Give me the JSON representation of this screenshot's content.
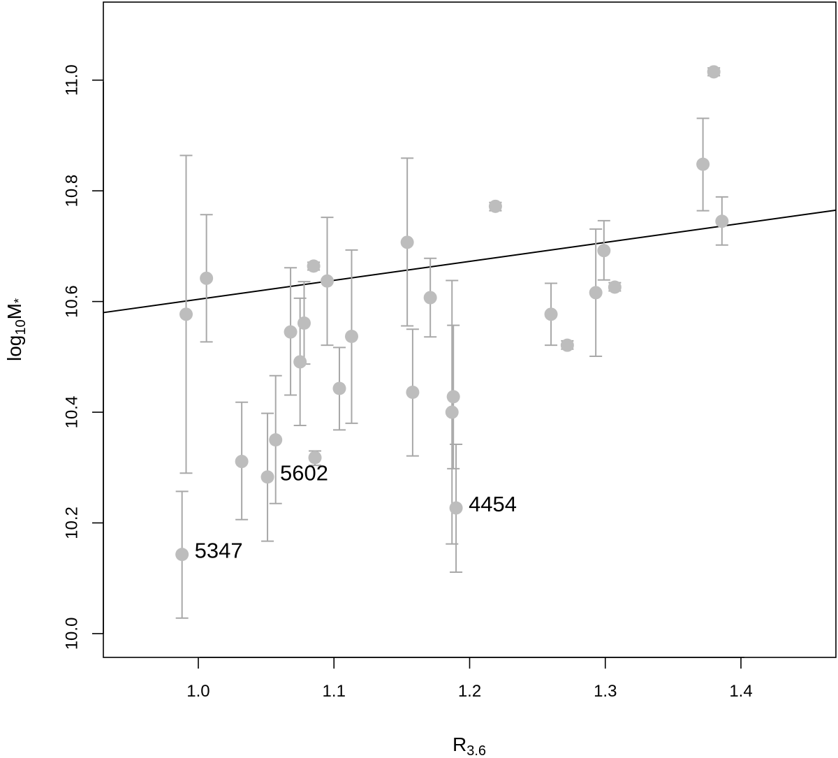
{
  "chart_data": {
    "type": "scatter",
    "xlabel": {
      "main": "R",
      "sub": "3.6"
    },
    "ylabel": {
      "main": "log",
      "sub": "10",
      "rest": "M",
      "sup": "*"
    },
    "xlim": [
      0.93,
      1.47
    ],
    "ylim": [
      9.957,
      11.141
    ],
    "xticks": [
      1.0,
      1.1,
      1.2,
      1.3,
      1.4
    ],
    "xtick_labels": [
      "1.0",
      "1.1",
      "1.2",
      "1.3",
      "1.4"
    ],
    "yticks": [
      10.0,
      10.2,
      10.4,
      10.6,
      10.8,
      11.0
    ],
    "ytick_labels": [
      "10.0",
      "10.2",
      "10.4",
      "10.6",
      "10.8",
      "11.0"
    ],
    "grid": false,
    "point_color": "#bdbdbd",
    "errorbar_color": "#a8a8a8",
    "line_color": "#000000",
    "fit_line": {
      "x": [
        0.93,
        1.47
      ],
      "y": [
        10.58,
        10.765
      ]
    },
    "points": [
      {
        "x": 0.988,
        "y": 10.143,
        "lo": 10.028,
        "hi": 10.257
      },
      {
        "x": 0.991,
        "y": 10.577,
        "lo": 10.29,
        "hi": 10.864
      },
      {
        "x": 1.006,
        "y": 10.642,
        "lo": 10.527,
        "hi": 10.757
      },
      {
        "x": 1.032,
        "y": 10.311,
        "lo": 10.206,
        "hi": 10.418
      },
      {
        "x": 1.051,
        "y": 10.283,
        "lo": 10.167,
        "hi": 10.398
      },
      {
        "x": 1.057,
        "y": 10.35,
        "lo": 10.235,
        "hi": 10.466
      },
      {
        "x": 1.068,
        "y": 10.545,
        "lo": 10.431,
        "hi": 10.661
      },
      {
        "x": 1.075,
        "y": 10.491,
        "lo": 10.376,
        "hi": 10.606
      },
      {
        "x": 1.078,
        "y": 10.561,
        "lo": 10.487,
        "hi": 10.636
      },
      {
        "x": 1.085,
        "y": 10.664,
        "lo": 10.657,
        "hi": 10.671
      },
      {
        "x": 1.086,
        "y": 10.318,
        "lo": 10.304,
        "hi": 10.33
      },
      {
        "x": 1.095,
        "y": 10.637,
        "lo": 10.521,
        "hi": 10.752
      },
      {
        "x": 1.104,
        "y": 10.443,
        "lo": 10.368,
        "hi": 10.517
      },
      {
        "x": 1.113,
        "y": 10.537,
        "lo": 10.38,
        "hi": 10.693
      },
      {
        "x": 1.154,
        "y": 10.707,
        "lo": 10.556,
        "hi": 10.859
      },
      {
        "x": 1.158,
        "y": 10.436,
        "lo": 10.321,
        "hi": 10.55
      },
      {
        "x": 1.171,
        "y": 10.607,
        "lo": 10.536,
        "hi": 10.678
      },
      {
        "x": 1.187,
        "y": 10.4,
        "lo": 10.162,
        "hi": 10.638
      },
      {
        "x": 1.188,
        "y": 10.428,
        "lo": 10.298,
        "hi": 10.557
      },
      {
        "x": 1.19,
        "y": 10.227,
        "lo": 10.111,
        "hi": 10.342
      },
      {
        "x": 1.219,
        "y": 10.772,
        "lo": 10.764,
        "hi": 10.779
      },
      {
        "x": 1.26,
        "y": 10.577,
        "lo": 10.521,
        "hi": 10.633
      },
      {
        "x": 1.272,
        "y": 10.521,
        "lo": 10.514,
        "hi": 10.529
      },
      {
        "x": 1.293,
        "y": 10.616,
        "lo": 10.501,
        "hi": 10.731
      },
      {
        "x": 1.299,
        "y": 10.692,
        "lo": 10.639,
        "hi": 10.746
      },
      {
        "x": 1.307,
        "y": 10.626,
        "lo": 10.619,
        "hi": 10.634
      },
      {
        "x": 1.372,
        "y": 10.848,
        "lo": 10.764,
        "hi": 10.931
      },
      {
        "x": 1.38,
        "y": 11.015,
        "lo": 11.008,
        "hi": 11.022
      },
      {
        "x": 1.386,
        "y": 10.745,
        "lo": 10.702,
        "hi": 10.789
      }
    ],
    "annotations": [
      {
        "text": "5347",
        "x": 0.988,
        "y": 10.143
      },
      {
        "text": "5602",
        "x": 1.051,
        "y": 10.283
      },
      {
        "text": "4454",
        "x": 1.19,
        "y": 10.227
      }
    ]
  }
}
